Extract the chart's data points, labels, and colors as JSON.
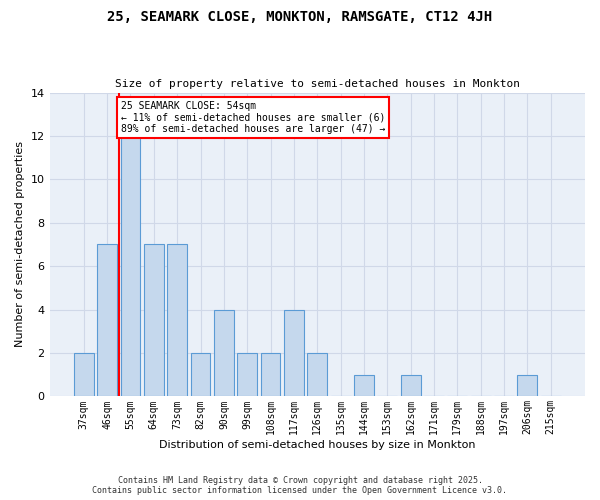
{
  "title": "25, SEAMARK CLOSE, MONKTON, RAMSGATE, CT12 4JH",
  "subtitle": "Size of property relative to semi-detached houses in Monkton",
  "xlabel": "Distribution of semi-detached houses by size in Monkton",
  "ylabel": "Number of semi-detached properties",
  "categories": [
    "37sqm",
    "46sqm",
    "55sqm",
    "64sqm",
    "73sqm",
    "82sqm",
    "90sqm",
    "99sqm",
    "108sqm",
    "117sqm",
    "126sqm",
    "135sqm",
    "144sqm",
    "153sqm",
    "162sqm",
    "171sqm",
    "179sqm",
    "188sqm",
    "197sqm",
    "206sqm",
    "215sqm"
  ],
  "values": [
    2,
    7,
    12,
    7,
    7,
    2,
    4,
    2,
    2,
    4,
    2,
    0,
    1,
    0,
    1,
    0,
    0,
    0,
    0,
    1,
    0
  ],
  "bar_color": "#c5d8ed",
  "bar_edge_color": "#5b9bd5",
  "grid_color": "#d0d8e8",
  "bg_color": "#eaf0f8",
  "annotation_line1": "25 SEAMARK CLOSE: 54sqm",
  "annotation_line2": "← 11% of semi-detached houses are smaller (6)",
  "annotation_line3": "89% of semi-detached houses are larger (47) →",
  "annotation_box_color": "white",
  "annotation_box_edge": "red",
  "footer": "Contains HM Land Registry data © Crown copyright and database right 2025.\nContains public sector information licensed under the Open Government Licence v3.0.",
  "ylim": [
    0,
    14
  ],
  "yticks": [
    0,
    2,
    4,
    6,
    8,
    10,
    12,
    14
  ]
}
